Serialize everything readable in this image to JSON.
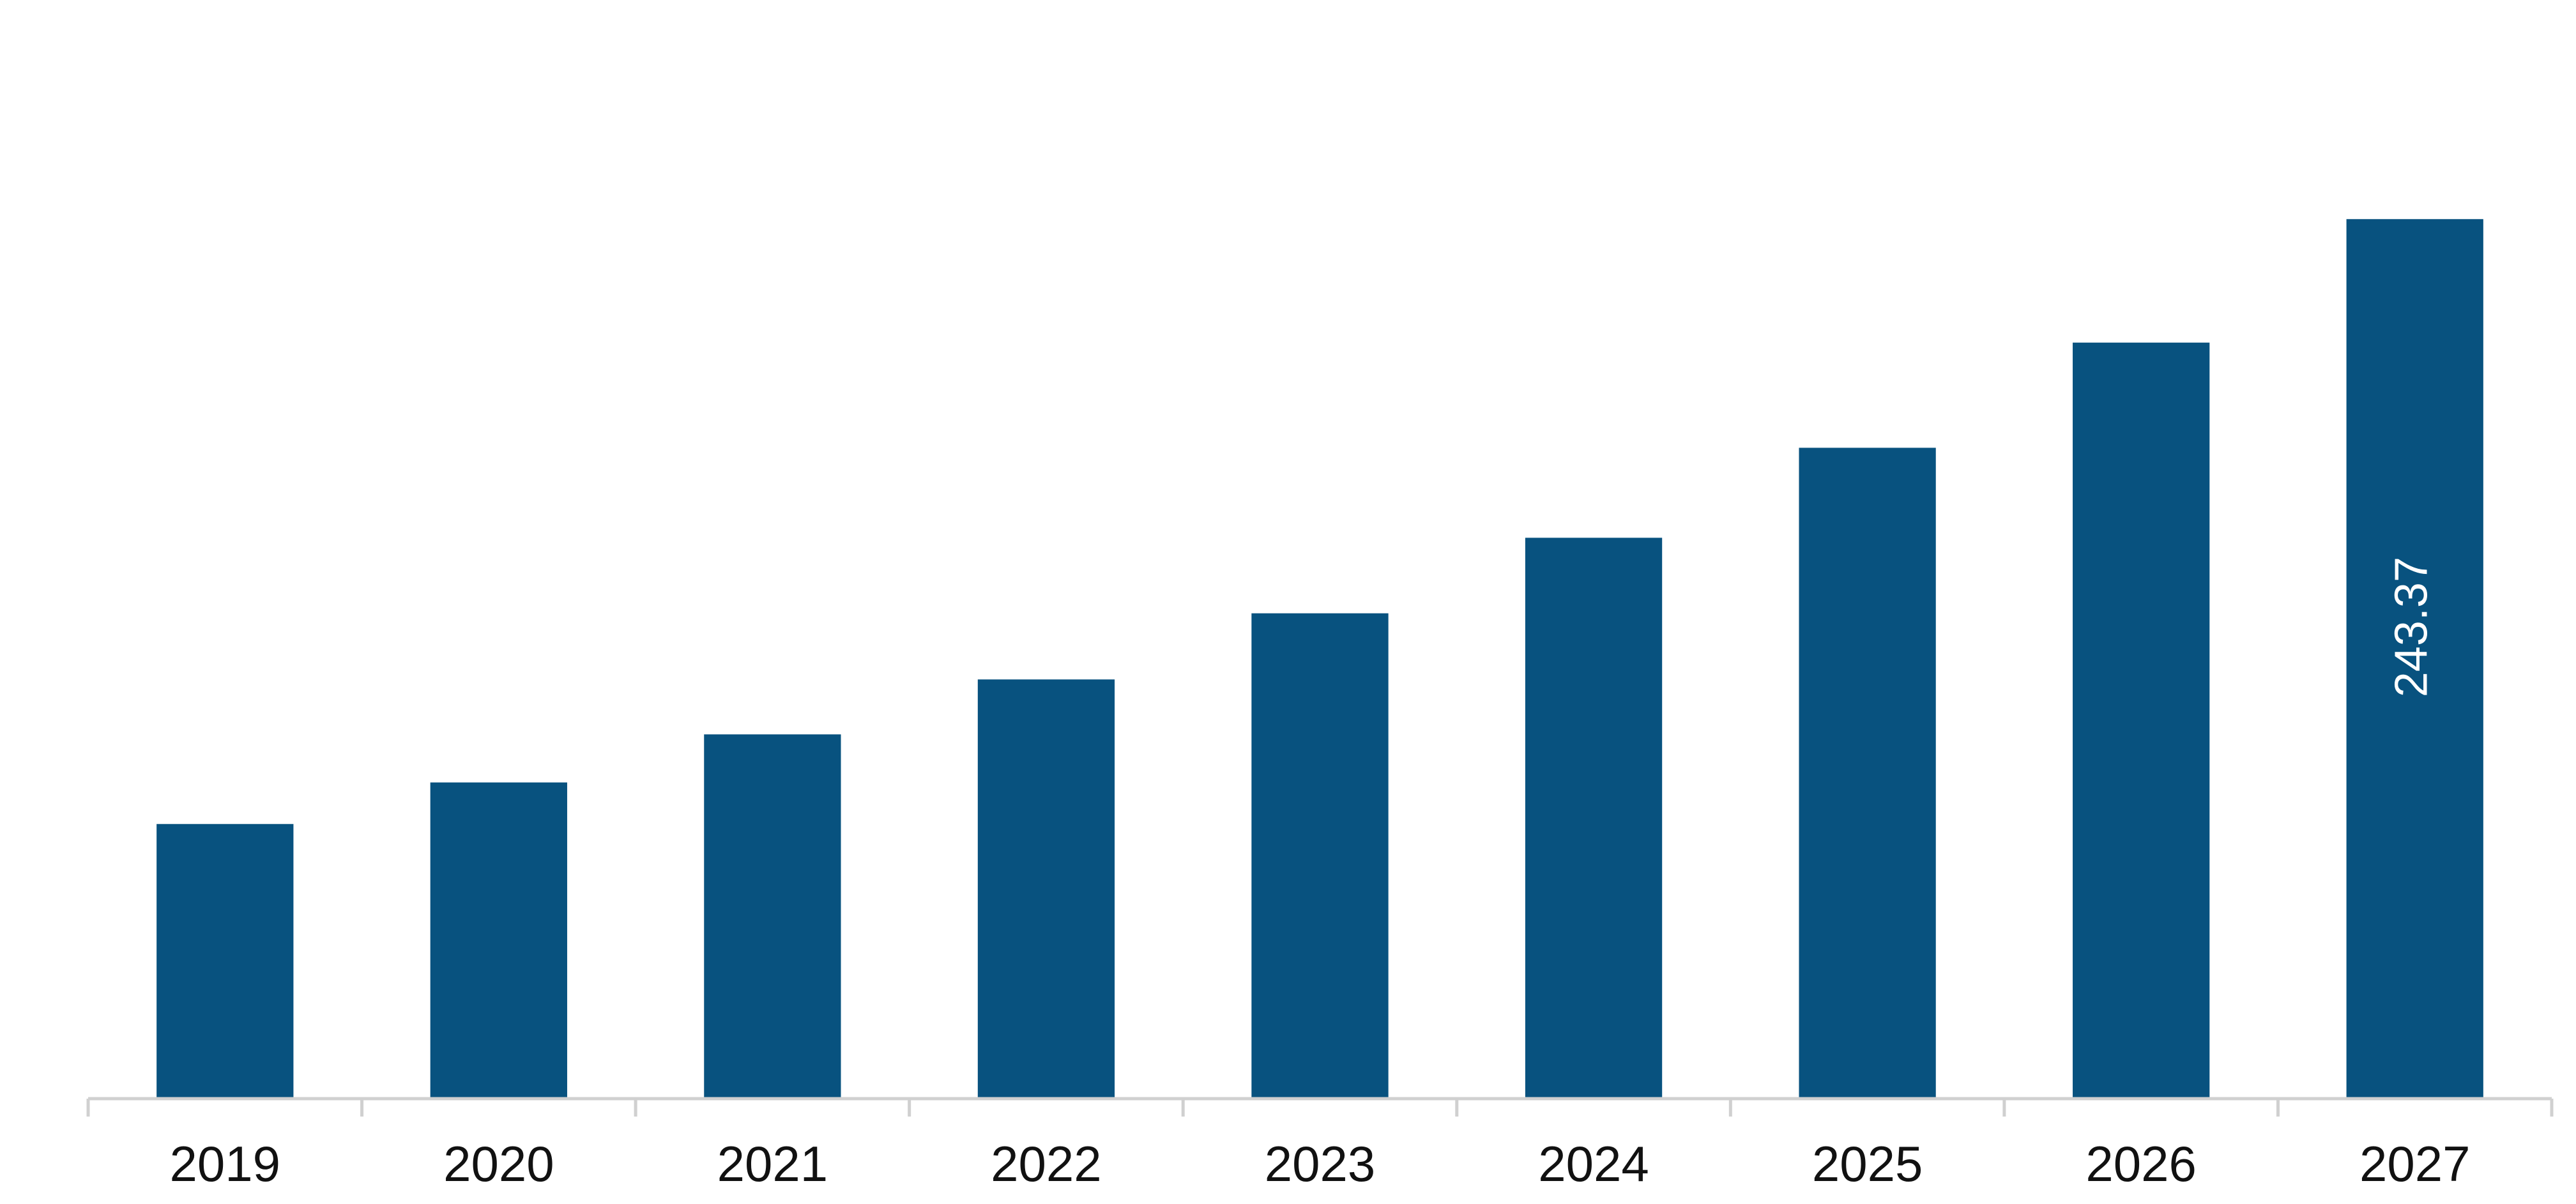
{
  "chart_data": {
    "type": "bar",
    "title": "",
    "xlabel": "",
    "ylabel": "",
    "categories": [
      "2019",
      "2020",
      "2021",
      "2022",
      "2023",
      "2024",
      "2025",
      "2026",
      "2027"
    ],
    "values": [
      76.0,
      87.5,
      100.8,
      116.0,
      134.3,
      155.2,
      180.1,
      209.2,
      243.37
    ],
    "data_labels": [
      {
        "index": 8,
        "text": "243.37",
        "orientation": "vertical"
      }
    ],
    "ylim": [
      0,
      304
    ],
    "grid": false,
    "legend": "none",
    "colors": {
      "bar": "#08527F",
      "axis": "#D0D0D0",
      "tick_label": "#111111",
      "data_label": "#FFFFFF"
    }
  }
}
